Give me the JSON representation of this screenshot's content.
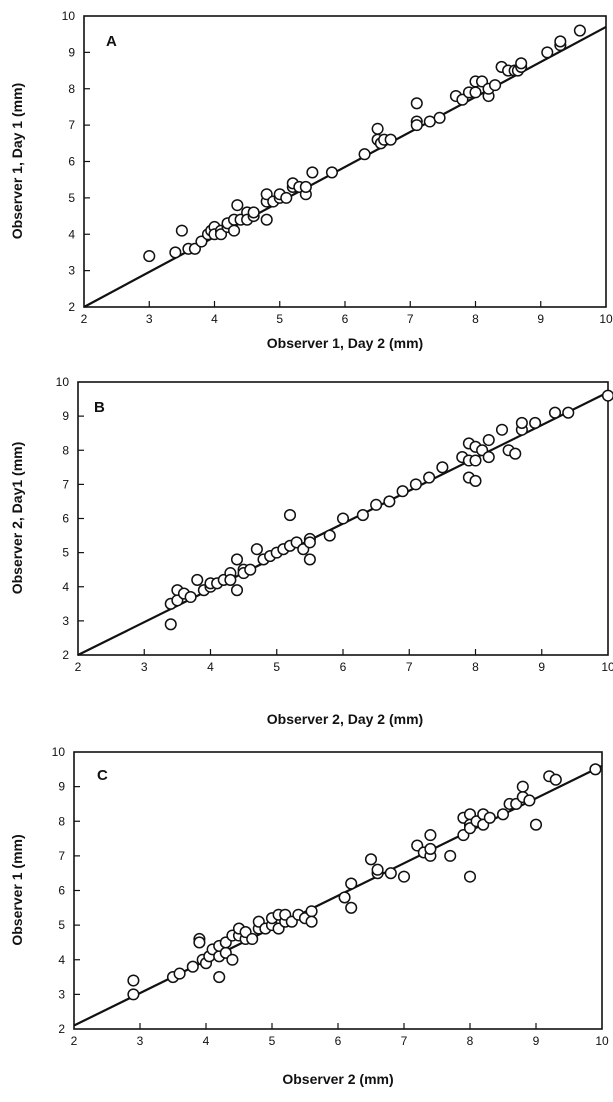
{
  "chart_data": [
    {
      "type": "scatter",
      "panel_label": "A",
      "xlabel": "Observer 1, Day 2 (mm)",
      "ylabel": "Observer 1, Day 1 (mm)",
      "xlim": [
        2,
        10
      ],
      "ylim": [
        2,
        10
      ],
      "xticks": [
        "2",
        "3",
        "4",
        "5",
        "6",
        "7",
        "8",
        "9",
        "10"
      ],
      "yticks": [
        "2",
        "3",
        "4",
        "5",
        "6",
        "7",
        "8",
        "9",
        "10"
      ],
      "line": {
        "x": [
          2,
          10
        ],
        "y": [
          2,
          9.7
        ]
      },
      "points": {
        "x": [
          3.0,
          3.4,
          3.5,
          3.6,
          3.7,
          3.8,
          3.9,
          3.95,
          4.0,
          4.0,
          4.1,
          4.1,
          4.2,
          4.2,
          4.3,
          4.3,
          4.35,
          4.4,
          4.5,
          4.5,
          4.6,
          4.6,
          4.8,
          4.8,
          4.8,
          4.9,
          5.0,
          5.0,
          5.1,
          5.2,
          5.2,
          5.3,
          5.4,
          5.4,
          5.5,
          5.8,
          6.3,
          6.5,
          6.5,
          6.55,
          6.6,
          6.7,
          7.1,
          7.1,
          7.1,
          7.3,
          7.45,
          7.7,
          7.8,
          7.9,
          8.0,
          8.0,
          8.1,
          8.2,
          8.2,
          8.3,
          8.4,
          8.5,
          8.6,
          8.65,
          8.7,
          8.7,
          9.1,
          9.3,
          9.3,
          9.6
        ],
        "y": [
          3.4,
          3.5,
          4.1,
          3.6,
          3.6,
          3.8,
          4.0,
          4.1,
          4.2,
          4.0,
          4.1,
          4.0,
          4.2,
          4.3,
          4.4,
          4.1,
          4.8,
          4.4,
          4.6,
          4.4,
          4.5,
          4.6,
          4.4,
          4.9,
          5.1,
          4.9,
          5.0,
          5.1,
          5.0,
          5.3,
          5.4,
          5.3,
          5.1,
          5.3,
          5.7,
          5.7,
          6.2,
          6.6,
          6.9,
          6.5,
          6.6,
          6.6,
          7.6,
          7.1,
          7.0,
          7.1,
          7.2,
          7.8,
          7.7,
          7.9,
          8.2,
          7.9,
          8.2,
          7.8,
          8.0,
          8.1,
          8.6,
          8.5,
          8.5,
          8.5,
          8.6,
          8.7,
          9.0,
          9.2,
          9.3,
          9.6
        ]
      }
    },
    {
      "type": "scatter",
      "panel_label": "B",
      "xlabel": "Observer 2, Day 2 (mm)",
      "ylabel": "Observer 2, Day1 (mm)",
      "xlim": [
        2,
        10
      ],
      "ylim": [
        2,
        10
      ],
      "xticks": [
        "2",
        "3",
        "4",
        "5",
        "6",
        "7",
        "8",
        "9",
        "10"
      ],
      "yticks": [
        "2",
        "3",
        "4",
        "5",
        "6",
        "7",
        "8",
        "9",
        "10"
      ],
      "line": {
        "x": [
          2,
          10
        ],
        "y": [
          2,
          9.7
        ]
      },
      "points": {
        "x": [
          3.4,
          3.4,
          3.5,
          3.5,
          3.6,
          3.7,
          3.8,
          3.9,
          4.0,
          4.0,
          4.1,
          4.2,
          4.3,
          4.3,
          4.4,
          4.4,
          4.5,
          4.5,
          4.6,
          4.7,
          4.8,
          4.9,
          5.0,
          5.1,
          5.2,
          5.2,
          5.3,
          5.4,
          5.5,
          5.5,
          5.5,
          5.8,
          6.0,
          6.3,
          6.5,
          6.7,
          6.9,
          7.1,
          7.3,
          7.5,
          7.8,
          7.9,
          7.9,
          7.9,
          8.0,
          8.0,
          8.0,
          8.1,
          8.2,
          8.2,
          8.4,
          8.5,
          8.6,
          8.7,
          8.7,
          8.9,
          9.2,
          9.4,
          10.0
        ],
        "y": [
          2.9,
          3.5,
          3.9,
          3.6,
          3.8,
          3.7,
          4.2,
          3.9,
          4.0,
          4.1,
          4.1,
          4.2,
          4.4,
          4.2,
          4.8,
          3.9,
          4.5,
          4.4,
          4.5,
          5.1,
          4.8,
          4.9,
          5.0,
          5.1,
          6.1,
          5.2,
          5.3,
          5.1,
          4.8,
          5.4,
          5.3,
          5.5,
          6.0,
          6.1,
          6.4,
          6.5,
          6.8,
          7.0,
          7.2,
          7.5,
          7.8,
          8.2,
          7.7,
          7.2,
          7.1,
          8.1,
          7.7,
          8.0,
          8.3,
          7.8,
          8.6,
          8.0,
          7.9,
          8.6,
          8.8,
          8.8,
          9.1,
          9.1,
          9.6
        ]
      }
    },
    {
      "type": "scatter",
      "panel_label": "C",
      "xlabel": "Observer 2 (mm)",
      "ylabel": "Observer 1 (mm)",
      "xlim": [
        2,
        10
      ],
      "ylim": [
        2,
        10
      ],
      "xticks": [
        "2",
        "3",
        "4",
        "5",
        "6",
        "7",
        "8",
        "9",
        "10"
      ],
      "yticks": [
        "2",
        "3",
        "4",
        "5",
        "6",
        "7",
        "8",
        "9",
        "10"
      ],
      "line": {
        "x": [
          2,
          10
        ],
        "y": [
          2.1,
          9.6
        ]
      },
      "points": {
        "x": [
          2.9,
          2.9,
          3.5,
          3.6,
          3.8,
          3.9,
          3.9,
          3.95,
          4.0,
          4.05,
          4.1,
          4.2,
          4.2,
          4.2,
          4.3,
          4.3,
          4.4,
          4.4,
          4.5,
          4.5,
          4.6,
          4.6,
          4.7,
          4.8,
          4.8,
          4.9,
          5.0,
          5.0,
          5.1,
          5.1,
          5.2,
          5.2,
          5.3,
          5.4,
          5.5,
          5.6,
          5.6,
          6.1,
          6.2,
          6.2,
          6.5,
          6.6,
          6.6,
          6.8,
          7.0,
          7.2,
          7.3,
          7.4,
          7.4,
          7.4,
          7.7,
          7.9,
          7.9,
          8.0,
          8.0,
          8.0,
          8.0,
          8.1,
          8.2,
          8.2,
          8.3,
          8.5,
          8.6,
          8.7,
          8.8,
          8.8,
          8.9,
          9.0,
          9.2,
          9.3,
          9.9
        ],
        "y": [
          3.4,
          3.0,
          3.5,
          3.6,
          3.8,
          4.6,
          4.5,
          4.0,
          3.9,
          4.1,
          4.3,
          3.5,
          4.1,
          4.4,
          4.2,
          4.5,
          4.0,
          4.7,
          4.7,
          4.9,
          4.6,
          4.8,
          4.6,
          4.9,
          5.1,
          4.9,
          5.0,
          5.2,
          4.9,
          5.3,
          5.1,
          5.3,
          5.1,
          5.3,
          5.2,
          5.4,
          5.1,
          5.8,
          5.5,
          6.2,
          6.9,
          6.5,
          6.6,
          6.5,
          6.4,
          7.3,
          7.1,
          7.0,
          7.6,
          7.2,
          7.0,
          7.6,
          8.1,
          8.2,
          7.9,
          7.8,
          6.4,
          8.0,
          8.2,
          7.9,
          8.1,
          8.2,
          8.5,
          8.5,
          8.7,
          9.0,
          8.6,
          7.9,
          9.3,
          9.2,
          9.5
        ]
      }
    }
  ]
}
